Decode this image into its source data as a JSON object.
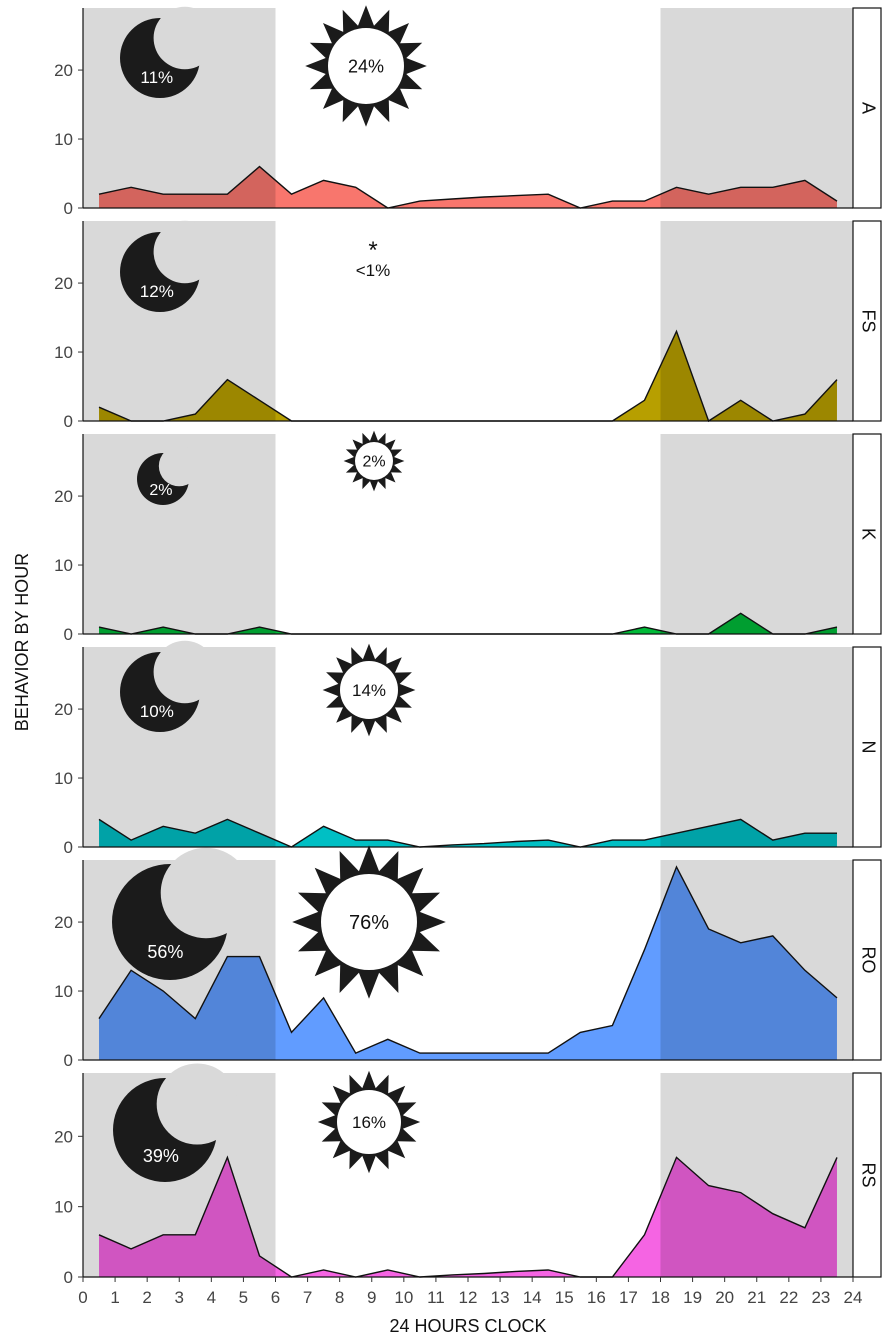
{
  "chart_data": {
    "type": "area",
    "xlabel": "24 HOURS CLOCK",
    "ylabel": "BEHAVIOR BY HOUR",
    "xlim": [
      0,
      24
    ],
    "ylim": [
      0,
      29
    ],
    "x_ticks": [
      0,
      1,
      2,
      3,
      4,
      5,
      6,
      7,
      8,
      9,
      10,
      11,
      12,
      13,
      14,
      15,
      16,
      17,
      18,
      19,
      20,
      21,
      22,
      23,
      24
    ],
    "y_ticks": [
      0,
      10,
      20
    ],
    "night_shading": [
      [
        0,
        6
      ],
      [
        18,
        24
      ]
    ],
    "x": [
      0.5,
      1.5,
      2.5,
      3.5,
      4.5,
      5.5,
      6.5,
      7.5,
      8.5,
      9.5,
      10.5,
      11.5,
      12.5,
      13.5,
      14.5,
      15.5,
      16.5,
      17.5,
      18.5,
      19.5,
      20.5,
      21.5,
      22.5,
      23.5
    ],
    "panels": [
      {
        "label": "A",
        "color": "#f8766d",
        "night_pct": "11%",
        "day_pct": "24%",
        "values": [
          2,
          3,
          2,
          2,
          2,
          6,
          2,
          4,
          3,
          0,
          1,
          1.3,
          1.6,
          1.8,
          2,
          0,
          1,
          1,
          3,
          2,
          3,
          3,
          4,
          1
        ]
      },
      {
        "label": "FS",
        "color": "#b79f00",
        "night_pct": "12%",
        "day_pct": "<1%",
        "day_marker": "*",
        "values": [
          2,
          0,
          0,
          1,
          6,
          3,
          0,
          0,
          0,
          0,
          0,
          0,
          0,
          0,
          0,
          0,
          0,
          3,
          13,
          0,
          3,
          0,
          1,
          6
        ]
      },
      {
        "label": "K",
        "color": "#00ba38",
        "night_pct": "2%",
        "day_pct": "2%",
        "values": [
          1,
          0,
          1,
          0,
          0,
          1,
          0,
          0,
          0,
          0,
          0,
          0,
          0,
          0,
          0,
          0,
          0,
          1,
          0,
          0,
          3,
          0,
          0,
          1
        ]
      },
      {
        "label": "N",
        "color": "#00bfc4",
        "night_pct": "10%",
        "day_pct": "14%",
        "values": [
          4,
          1,
          3,
          2,
          4,
          2,
          0,
          3,
          1,
          1,
          0,
          0.3,
          0.5,
          0.8,
          1,
          0,
          1,
          1,
          2,
          3,
          4,
          1,
          2,
          2
        ]
      },
      {
        "label": "RO",
        "color": "#619cff",
        "night_pct": "56%",
        "day_pct": "76%",
        "values": [
          6,
          13,
          10,
          6,
          15,
          15,
          4,
          9,
          1,
          3,
          1,
          1,
          1,
          1,
          1,
          4,
          5,
          16,
          28,
          19,
          17,
          18,
          13,
          9
        ]
      },
      {
        "label": "RS",
        "color": "#f564e3",
        "night_pct": "39%",
        "day_pct": "16%",
        "values": [
          6,
          4,
          6,
          6,
          17,
          3,
          0,
          1,
          0,
          1,
          0,
          0.3,
          0.5,
          0.8,
          1,
          0,
          0,
          6,
          17,
          13,
          12,
          9,
          7,
          17
        ]
      }
    ]
  }
}
